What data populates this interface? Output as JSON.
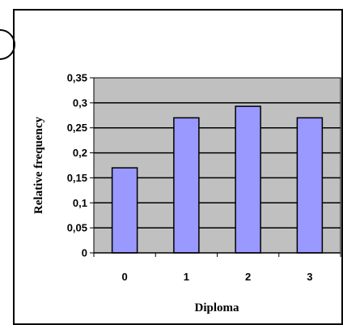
{
  "chart_data": {
    "type": "bar",
    "categories": [
      "0",
      "1",
      "2",
      "3"
    ],
    "values": [
      0.17,
      0.27,
      0.293,
      0.27
    ],
    "title": "",
    "xlabel": "Diploma",
    "ylabel": "Relative frequency",
    "ylim": [
      0,
      0.35
    ],
    "yticks": [
      0,
      0.05,
      0.1,
      0.15,
      0.2,
      0.25,
      0.3,
      0.35
    ],
    "ytick_labels": [
      "0",
      "0,05",
      "0,1",
      "0,15",
      "0,2",
      "0,25",
      "0,3",
      "0,35"
    ],
    "grid": true,
    "legend": "none",
    "colors": {
      "bar_fill": "#9999ff",
      "plot_background": "#c0c0c0",
      "frame": "#000000"
    }
  }
}
